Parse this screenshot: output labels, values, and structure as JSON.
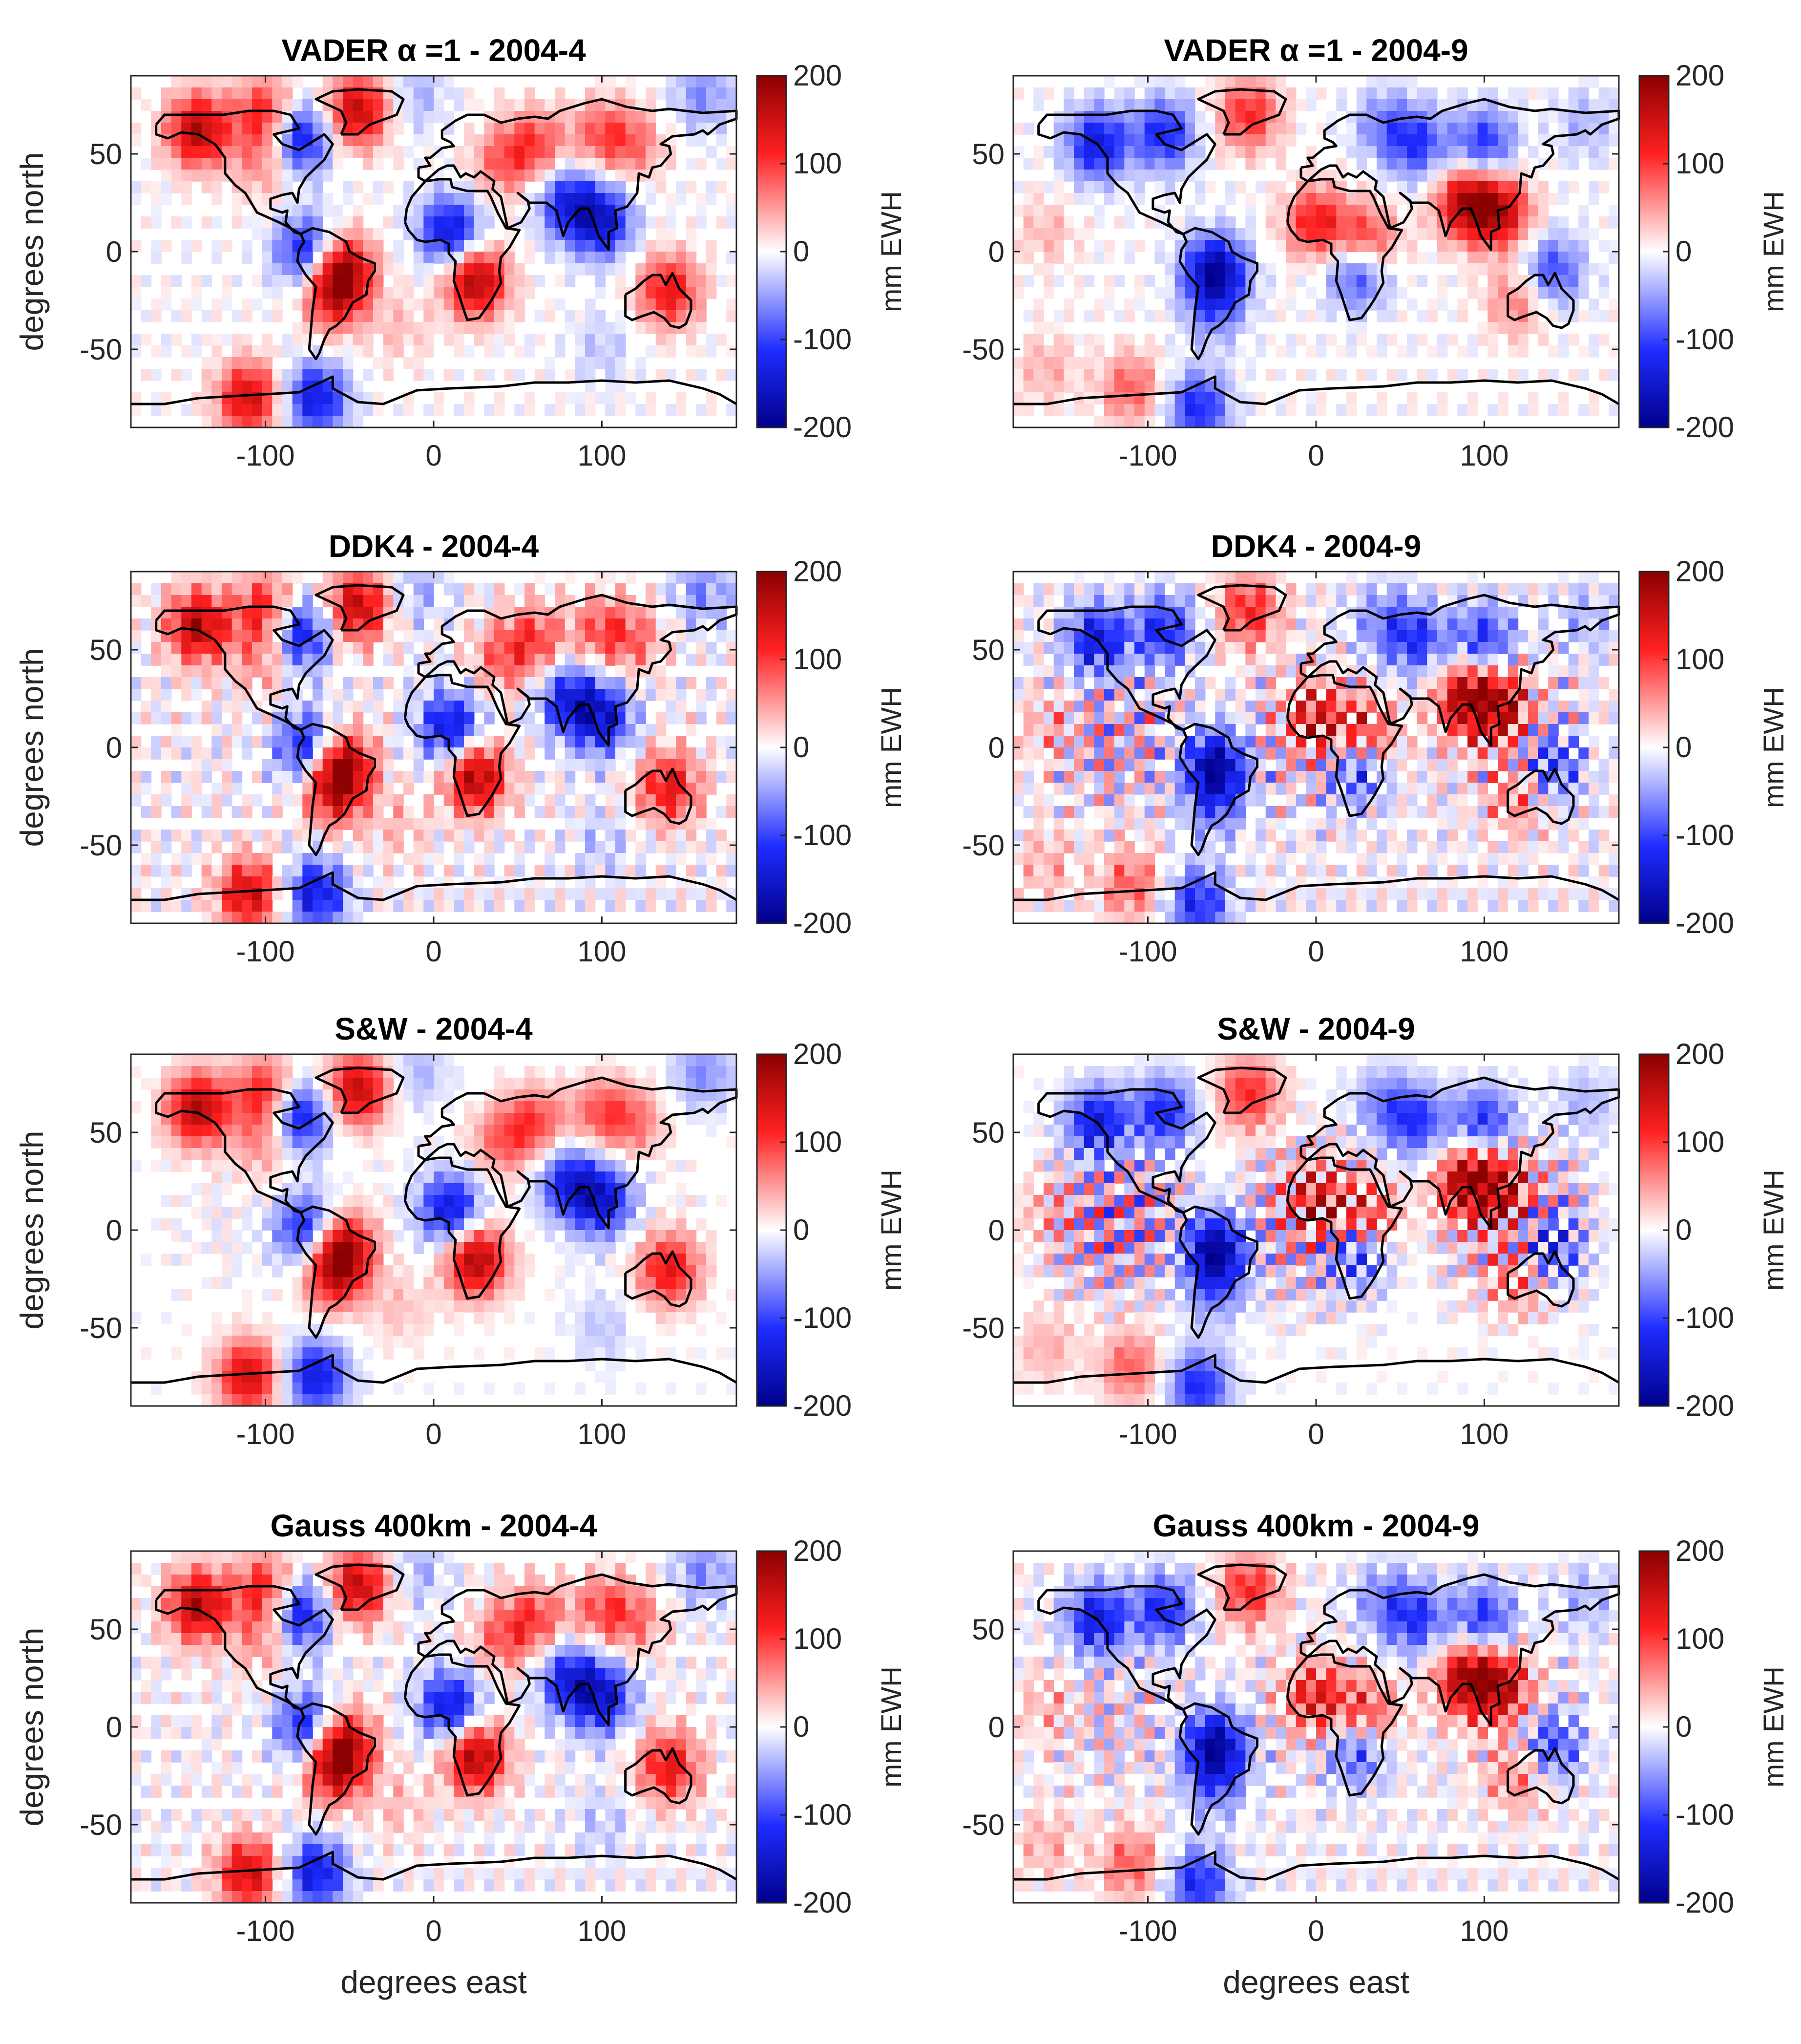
{
  "chart_data": [
    {
      "type": "heatmap",
      "title": "VADER α =1 - 2004-4",
      "method": "VADER α =1",
      "month": "2004-4",
      "xlabel": "",
      "ylabel": "degrees north",
      "xlim": [
        -180,
        180
      ],
      "ylim": [
        -90,
        90
      ],
      "xticks": [
        "-100",
        "0",
        "100"
      ],
      "yticks": [
        "-50",
        "0",
        "50"
      ],
      "colorbar": {
        "label": "mm EWH",
        "range": [
          -200,
          200
        ],
        "ticks": [
          "-200",
          "-100",
          "0",
          "100",
          "200"
        ]
      },
      "colormap": [
        "#00008b",
        "#ff2020",
        "#8b0000"
      ]
    },
    {
      "type": "heatmap",
      "title": "VADER α =1 - 2004-9",
      "method": "VADER α =1",
      "month": "2004-9",
      "xlabel": "",
      "ylabel": "",
      "xlim": [
        -180,
        180
      ],
      "ylim": [
        -90,
        90
      ],
      "xticks": [
        "-100",
        "0",
        "100"
      ],
      "yticks": [
        "-50",
        "0",
        "50"
      ],
      "colorbar": {
        "label": "mm EWH",
        "range": [
          -200,
          200
        ],
        "ticks": [
          "-200",
          "-100",
          "0",
          "100",
          "200"
        ]
      }
    },
    {
      "type": "heatmap",
      "title": "DDK4 - 2004-4",
      "method": "DDK4",
      "month": "2004-4",
      "xlabel": "",
      "ylabel": "degrees north",
      "xlim": [
        -180,
        180
      ],
      "ylim": [
        -90,
        90
      ],
      "xticks": [
        "-100",
        "0",
        "100"
      ],
      "yticks": [
        "-50",
        "0",
        "50"
      ],
      "colorbar": {
        "label": "mm EWH",
        "range": [
          -200,
          200
        ],
        "ticks": [
          "-200",
          "-100",
          "0",
          "100",
          "200"
        ]
      }
    },
    {
      "type": "heatmap",
      "title": "DDK4 - 2004-9",
      "method": "DDK4",
      "month": "2004-9",
      "xlabel": "",
      "ylabel": "",
      "xlim": [
        -180,
        180
      ],
      "ylim": [
        -90,
        90
      ],
      "xticks": [
        "-100",
        "0",
        "100"
      ],
      "yticks": [
        "-50",
        "0",
        "50"
      ],
      "colorbar": {
        "label": "mm EWH",
        "range": [
          -200,
          200
        ],
        "ticks": [
          "-200",
          "-100",
          "0",
          "100",
          "200"
        ]
      }
    },
    {
      "type": "heatmap",
      "title": "S&W  - 2004-4",
      "method": "S&W",
      "month": "2004-4",
      "xlabel": "",
      "ylabel": "degrees north",
      "xlim": [
        -180,
        180
      ],
      "ylim": [
        -90,
        90
      ],
      "xticks": [
        "-100",
        "0",
        "100"
      ],
      "yticks": [
        "-50",
        "0",
        "50"
      ],
      "colorbar": {
        "label": "mm EWH",
        "range": [
          -200,
          200
        ],
        "ticks": [
          "-200",
          "-100",
          "0",
          "100",
          "200"
        ]
      }
    },
    {
      "type": "heatmap",
      "title": "S&W  - 2004-9",
      "method": "S&W",
      "month": "2004-9",
      "xlabel": "",
      "ylabel": "",
      "xlim": [
        -180,
        180
      ],
      "ylim": [
        -90,
        90
      ],
      "xticks": [
        "-100",
        "0",
        "100"
      ],
      "yticks": [
        "-50",
        "0",
        "50"
      ],
      "colorbar": {
        "label": "mm EWH",
        "range": [
          -200,
          200
        ],
        "ticks": [
          "-200",
          "-100",
          "0",
          "100",
          "200"
        ]
      }
    },
    {
      "type": "heatmap",
      "title": "Gauss 400km - 2004-4",
      "method": "Gauss 400km",
      "month": "2004-4",
      "xlabel": "degrees east",
      "ylabel": "degrees north",
      "xlim": [
        -180,
        180
      ],
      "ylim": [
        -90,
        90
      ],
      "xticks": [
        "-100",
        "0",
        "100"
      ],
      "yticks": [
        "-50",
        "0",
        "50"
      ],
      "colorbar": {
        "label": "mm EWH",
        "range": [
          -200,
          200
        ],
        "ticks": [
          "-200",
          "-100",
          "0",
          "100",
          "200"
        ]
      }
    },
    {
      "type": "heatmap",
      "title": "Gauss 400km - 2004-9",
      "method": "Gauss 400km",
      "month": "2004-9",
      "xlabel": "degrees east",
      "ylabel": "",
      "xlim": [
        -180,
        180
      ],
      "ylim": [
        -90,
        90
      ],
      "xticks": [
        "-100",
        "0",
        "100"
      ],
      "yticks": [
        "-50",
        "0",
        "50"
      ],
      "colorbar": {
        "label": "mm EWH",
        "range": [
          -200,
          200
        ],
        "ticks": [
          "-200",
          "-100",
          "0",
          "100",
          "200"
        ]
      }
    }
  ],
  "anomalies": {
    "april": [
      {
        "lon": -140,
        "lat": 62,
        "v": 170
      },
      {
        "lon": -100,
        "lat": 70,
        "v": 120
      },
      {
        "lon": -80,
        "lat": 58,
        "v": -150
      },
      {
        "lon": -45,
        "lat": 72,
        "v": 160
      },
      {
        "lon": -100,
        "lat": 45,
        "v": 60
      },
      {
        "lon": -75,
        "lat": 0,
        "v": -140
      },
      {
        "lon": -55,
        "lat": -10,
        "v": 195
      },
      {
        "lon": -60,
        "lat": -25,
        "v": 90
      },
      {
        "lon": 10,
        "lat": 10,
        "v": -150
      },
      {
        "lon": 25,
        "lat": -15,
        "v": 180
      },
      {
        "lon": 60,
        "lat": 55,
        "v": 90
      },
      {
        "lon": 100,
        "lat": 60,
        "v": 80
      },
      {
        "lon": 40,
        "lat": 45,
        "v": 70
      },
      {
        "lon": 80,
        "lat": 25,
        "v": -120
      },
      {
        "lon": 100,
        "lat": 15,
        "v": -140
      },
      {
        "lon": 140,
        "lat": -20,
        "v": 130
      },
      {
        "lon": -110,
        "lat": -75,
        "v": 150
      },
      {
        "lon": -70,
        "lat": -75,
        "v": -140
      },
      {
        "lon": 120,
        "lat": 55,
        "v": 60
      },
      {
        "lon": 160,
        "lat": 80,
        "v": -60
      },
      {
        "lon": -10,
        "lat": 80,
        "v": -40
      },
      {
        "lon": -20,
        "lat": -40,
        "v": 30
      },
      {
        "lon": 100,
        "lat": -50,
        "v": -30
      }
    ],
    "september": [
      {
        "lon": -130,
        "lat": 55,
        "v": -140
      },
      {
        "lon": -90,
        "lat": 60,
        "v": -120
      },
      {
        "lon": -60,
        "lat": -10,
        "v": -180
      },
      {
        "lon": -60,
        "lat": -30,
        "v": -60
      },
      {
        "lon": -40,
        "lat": 70,
        "v": 110
      },
      {
        "lon": 0,
        "lat": 15,
        "v": 120
      },
      {
        "lon": 30,
        "lat": 5,
        "v": 120
      },
      {
        "lon": 25,
        "lat": -10,
        "v": -120
      },
      {
        "lon": 90,
        "lat": 25,
        "v": 170
      },
      {
        "lon": 110,
        "lat": 20,
        "v": 140
      },
      {
        "lon": 60,
        "lat": 55,
        "v": -100
      },
      {
        "lon": 100,
        "lat": 55,
        "v": -110
      },
      {
        "lon": 140,
        "lat": -10,
        "v": -100
      },
      {
        "lon": 120,
        "lat": -25,
        "v": 70
      },
      {
        "lon": -110,
        "lat": -70,
        "v": 80
      },
      {
        "lon": -70,
        "lat": -80,
        "v": -120
      },
      {
        "lon": -160,
        "lat": -60,
        "v": 40
      },
      {
        "lon": 160,
        "lat": 65,
        "v": -40
      },
      {
        "lon": -160,
        "lat": 10,
        "v": 35
      },
      {
        "lon": 40,
        "lat": 65,
        "v": -60
      }
    ]
  }
}
